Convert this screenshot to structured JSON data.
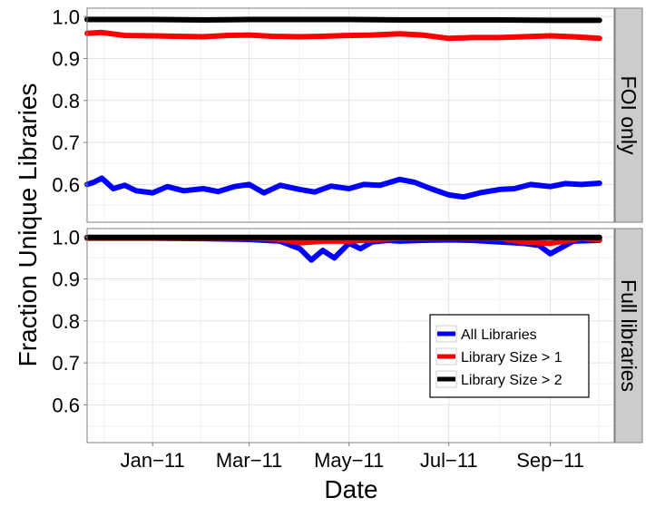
{
  "chart_data": {
    "type": "line",
    "xlabel": "Date",
    "ylabel": "Fraction Unique Libraries",
    "x_range": [
      "2010-11-22",
      "2011-10-10"
    ],
    "x_ticks": [
      {
        "date": "2011-01-01",
        "label": "Jan−11"
      },
      {
        "date": "2011-03-01",
        "label": "Mar−11"
      },
      {
        "date": "2011-05-01",
        "label": "May−11"
      },
      {
        "date": "2011-07-01",
        "label": "Jul−11"
      },
      {
        "date": "2011-09-01",
        "label": "Sep−11"
      }
    ],
    "ylim": [
      0.51,
      1.02
    ],
    "y_ticks": [
      {
        "value": 0.6,
        "label": "0.6"
      },
      {
        "value": 0.7,
        "label": "0.7"
      },
      {
        "value": 0.8,
        "label": "0.8"
      },
      {
        "value": 0.9,
        "label": "0.9"
      },
      {
        "value": 1.0,
        "label": "1.0"
      }
    ],
    "grid": true,
    "legend": {
      "placement": "bottom-right of lower panel",
      "entries": [
        {
          "label": "All Libraries",
          "color": "#0000ff"
        },
        {
          "label": "Library Size > 1",
          "color": "#ff0000"
        },
        {
          "label": "Library Size > 2",
          "color": "#000000"
        }
      ]
    },
    "panels": [
      {
        "strip_label": "FOI only",
        "series": [
          {
            "color": "#000000",
            "points": [
              [
                "2010-11-22",
                0.993
              ],
              [
                "2011-01-01",
                0.993
              ],
              [
                "2011-02-01",
                0.992
              ],
              [
                "2011-03-01",
                0.993
              ],
              [
                "2011-04-01",
                0.993
              ],
              [
                "2011-05-01",
                0.993
              ],
              [
                "2011-06-01",
                0.992
              ],
              [
                "2011-07-01",
                0.992
              ],
              [
                "2011-08-01",
                0.992
              ],
              [
                "2011-09-01",
                0.991
              ],
              [
                "2011-10-01",
                0.991
              ]
            ]
          },
          {
            "color": "#ff0000",
            "points": [
              [
                "2010-11-22",
                0.96
              ],
              [
                "2010-12-01",
                0.962
              ],
              [
                "2010-12-15",
                0.955
              ],
              [
                "2011-01-01",
                0.954
              ],
              [
                "2011-01-15",
                0.953
              ],
              [
                "2011-02-01",
                0.952
              ],
              [
                "2011-02-15",
                0.955
              ],
              [
                "2011-03-01",
                0.956
              ],
              [
                "2011-03-15",
                0.953
              ],
              [
                "2011-04-01",
                0.952
              ],
              [
                "2011-04-15",
                0.953
              ],
              [
                "2011-05-01",
                0.955
              ],
              [
                "2011-05-15",
                0.956
              ],
              [
                "2011-06-01",
                0.959
              ],
              [
                "2011-06-15",
                0.956
              ],
              [
                "2011-07-01",
                0.948
              ],
              [
                "2011-07-15",
                0.95
              ],
              [
                "2011-08-01",
                0.95
              ],
              [
                "2011-08-15",
                0.952
              ],
              [
                "2011-09-01",
                0.954
              ],
              [
                "2011-09-15",
                0.952
              ],
              [
                "2011-10-01",
                0.948
              ]
            ]
          },
          {
            "color": "#0000ff",
            "points": [
              [
                "2010-11-22",
                0.6
              ],
              [
                "2010-11-26",
                0.605
              ],
              [
                "2010-12-01",
                0.615
              ],
              [
                "2010-12-08",
                0.59
              ],
              [
                "2010-12-15",
                0.598
              ],
              [
                "2010-12-22",
                0.585
              ],
              [
                "2011-01-01",
                0.58
              ],
              [
                "2011-01-10",
                0.595
              ],
              [
                "2011-01-20",
                0.585
              ],
              [
                "2011-02-01",
                0.59
              ],
              [
                "2011-02-10",
                0.583
              ],
              [
                "2011-02-20",
                0.595
              ],
              [
                "2011-03-01",
                0.6
              ],
              [
                "2011-03-10",
                0.58
              ],
              [
                "2011-03-20",
                0.598
              ],
              [
                "2011-04-01",
                0.588
              ],
              [
                "2011-04-10",
                0.582
              ],
              [
                "2011-04-20",
                0.596
              ],
              [
                "2011-05-01",
                0.59
              ],
              [
                "2011-05-10",
                0.6
              ],
              [
                "2011-05-20",
                0.598
              ],
              [
                "2011-06-01",
                0.612
              ],
              [
                "2011-06-10",
                0.605
              ],
              [
                "2011-06-20",
                0.59
              ],
              [
                "2011-07-01",
                0.575
              ],
              [
                "2011-07-10",
                0.57
              ],
              [
                "2011-07-20",
                0.58
              ],
              [
                "2011-08-01",
                0.588
              ],
              [
                "2011-08-10",
                0.59
              ],
              [
                "2011-08-20",
                0.6
              ],
              [
                "2011-09-01",
                0.595
              ],
              [
                "2011-09-10",
                0.602
              ],
              [
                "2011-09-20",
                0.6
              ],
              [
                "2011-10-01",
                0.603
              ]
            ]
          }
        ]
      },
      {
        "strip_label": "Full libraries",
        "series": [
          {
            "color": "#0000ff",
            "points": [
              [
                "2010-11-22",
                0.997
              ],
              [
                "2011-01-01",
                0.997
              ],
              [
                "2011-02-01",
                0.996
              ],
              [
                "2011-03-01",
                0.994
              ],
              [
                "2011-03-20",
                0.99
              ],
              [
                "2011-04-01",
                0.972
              ],
              [
                "2011-04-08",
                0.945
              ],
              [
                "2011-04-15",
                0.968
              ],
              [
                "2011-04-22",
                0.95
              ],
              [
                "2011-05-01",
                0.985
              ],
              [
                "2011-05-08",
                0.972
              ],
              [
                "2011-05-15",
                0.988
              ],
              [
                "2011-05-25",
                0.992
              ],
              [
                "2011-06-01",
                0.99
              ],
              [
                "2011-06-15",
                0.992
              ],
              [
                "2011-07-01",
                0.993
              ],
              [
                "2011-07-15",
                0.992
              ],
              [
                "2011-08-01",
                0.988
              ],
              [
                "2011-08-15",
                0.985
              ],
              [
                "2011-08-25",
                0.98
              ],
              [
                "2011-09-01",
                0.96
              ],
              [
                "2011-09-08",
                0.975
              ],
              [
                "2011-09-15",
                0.99
              ],
              [
                "2011-10-01",
                0.992
              ]
            ]
          },
          {
            "color": "#ff0000",
            "points": [
              [
                "2010-11-22",
                0.998
              ],
              [
                "2011-01-01",
                0.998
              ],
              [
                "2011-02-01",
                0.998
              ],
              [
                "2011-03-01",
                0.998
              ],
              [
                "2011-03-20",
                0.994
              ],
              [
                "2011-04-01",
                0.986
              ],
              [
                "2011-04-15",
                0.99
              ],
              [
                "2011-05-01",
                0.99
              ],
              [
                "2011-05-15",
                0.993
              ],
              [
                "2011-06-01",
                0.997
              ],
              [
                "2011-07-01",
                0.998
              ],
              [
                "2011-08-01",
                0.997
              ],
              [
                "2011-08-15",
                0.988
              ],
              [
                "2011-09-01",
                0.985
              ],
              [
                "2011-09-10",
                0.99
              ],
              [
                "2011-09-20",
                0.997
              ],
              [
                "2011-10-01",
                0.993
              ]
            ]
          },
          {
            "color": "#000000",
            "points": [
              [
                "2010-11-22",
                0.999
              ],
              [
                "2011-01-01",
                0.999
              ],
              [
                "2011-03-01",
                0.999
              ],
              [
                "2011-05-01",
                0.999
              ],
              [
                "2011-07-01",
                0.999
              ],
              [
                "2011-09-01",
                0.999
              ],
              [
                "2011-10-01",
                0.999
              ]
            ]
          }
        ]
      }
    ]
  }
}
